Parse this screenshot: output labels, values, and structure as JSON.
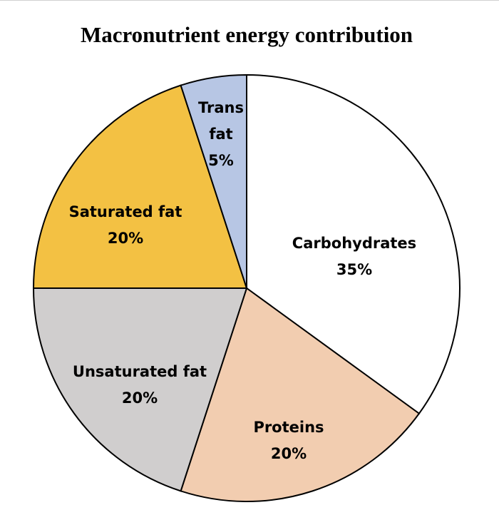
{
  "chart_data": {
    "type": "pie",
    "title": "Macronutrient energy contribution",
    "start": "top",
    "direction": "clockwise",
    "slices": [
      {
        "name": "Carbohydrates",
        "value": 35,
        "label_lines": [
          "Carbohydrates",
          "35%"
        ],
        "color": "#FFFFFF"
      },
      {
        "name": "Proteins",
        "value": 20,
        "label_lines": [
          "Proteins",
          "20%"
        ],
        "color": "#F2CDB0"
      },
      {
        "name": "Unsaturated fat",
        "value": 20,
        "label_lines": [
          "Unsaturated fat",
          "20%"
        ],
        "color": "#D0CECE"
      },
      {
        "name": "Saturated fat",
        "value": 20,
        "label_lines": [
          "Saturated fat",
          "20%"
        ],
        "color": "#F3C143"
      },
      {
        "name": "Trans fat",
        "value": 5,
        "label_lines": [
          "Trans",
          "fat",
          "5%"
        ],
        "color": "#B7C6E4"
      }
    ]
  }
}
